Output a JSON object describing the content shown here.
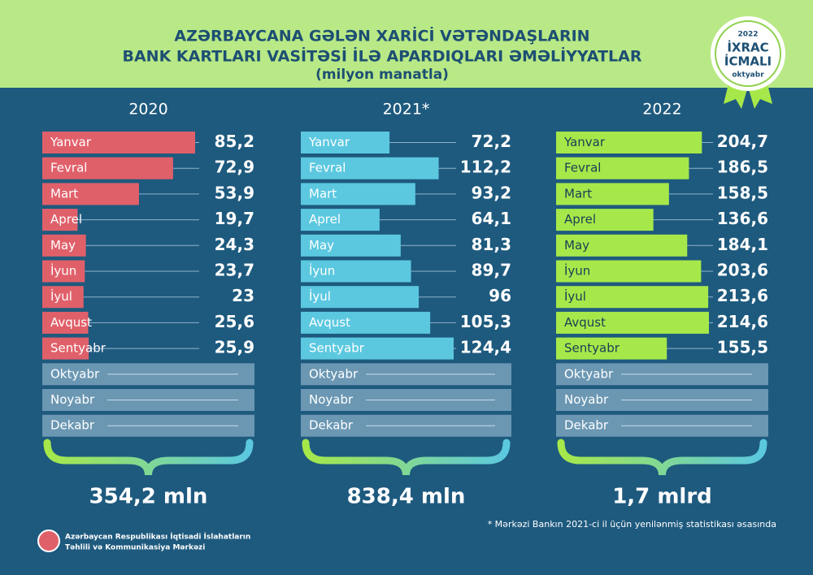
{
  "header": {
    "title_line1": "AZƏRBAYCANA GƏLƏN XARİCİ VƏTƏNDAŞLARIN",
    "title_line2": "BANK KARTLARI VASİTƏSİ İLƏ APARDIQLARI ƏMƏLİYYATLAR",
    "subtitle": "(milyon manatla)"
  },
  "badge": {
    "year": "2022",
    "line1": "İXRAC",
    "line2": "İCMALI",
    "month": "oktyabr"
  },
  "chart_data": [
    {
      "type": "bar",
      "title": "2020",
      "color": "#e0606a",
      "categories": [
        "Yanvar",
        "Fevral",
        "Mart",
        "Aprel",
        "May",
        "İyun",
        "İyul",
        "Avqust",
        "Sentyabr",
        "Oktyabr",
        "Noyabr",
        "Dekabr"
      ],
      "values": [
        85.2,
        72.9,
        53.9,
        19.7,
        24.3,
        23.7,
        23,
        25.6,
        25.9,
        null,
        null,
        null
      ],
      "value_labels": [
        "85,2",
        "72,9",
        "53,9",
        "19,7",
        "24,3",
        "23,7",
        "23",
        "25,6",
        "25,9",
        null,
        null,
        null
      ],
      "total": "354,2 mln"
    },
    {
      "type": "bar",
      "title": "2021*",
      "color": "#5bc8e0",
      "categories": [
        "Yanvar",
        "Fevral",
        "Mart",
        "Aprel",
        "May",
        "İyun",
        "İyul",
        "Avqust",
        "Sentyabr",
        "Oktyabr",
        "Noyabr",
        "Dekabr"
      ],
      "values": [
        72.2,
        112.2,
        93.2,
        64.1,
        81.3,
        89.7,
        96,
        105.3,
        124.4,
        null,
        null,
        null
      ],
      "value_labels": [
        "72,2",
        "112,2",
        "93,2",
        "64,1",
        "81,3",
        "89,7",
        "96",
        "105,3",
        "124,4",
        null,
        null,
        null
      ],
      "total": "838,4 mln"
    },
    {
      "type": "bar",
      "title": "2022",
      "color": "#a6e84a",
      "categories": [
        "Yanvar",
        "Fevral",
        "Mart",
        "Aprel",
        "May",
        "İyun",
        "İyul",
        "Avqust",
        "Sentyabr",
        "Oktyabr",
        "Noyabr",
        "Dekabr"
      ],
      "values": [
        204.7,
        186.5,
        158.5,
        136.6,
        184.1,
        203.6,
        213.6,
        214.6,
        155.5,
        null,
        null,
        null
      ],
      "value_labels": [
        "204,7",
        "186,5",
        "158,5",
        "136,6",
        "184,1",
        "203,6",
        "213,6",
        "214,6",
        "155,5",
        null,
        null,
        null
      ],
      "total": "1,7 mlrd"
    }
  ],
  "footnote": "* Mərkəzi Bankın 2021-ci il üçün yenilənmiş statistikası əsasında",
  "logo": {
    "line1": "Azərbaycan Respublikası İqtisadi İslahatların",
    "line2": "Təhlili və Kommunikasiya Mərkəzi"
  }
}
